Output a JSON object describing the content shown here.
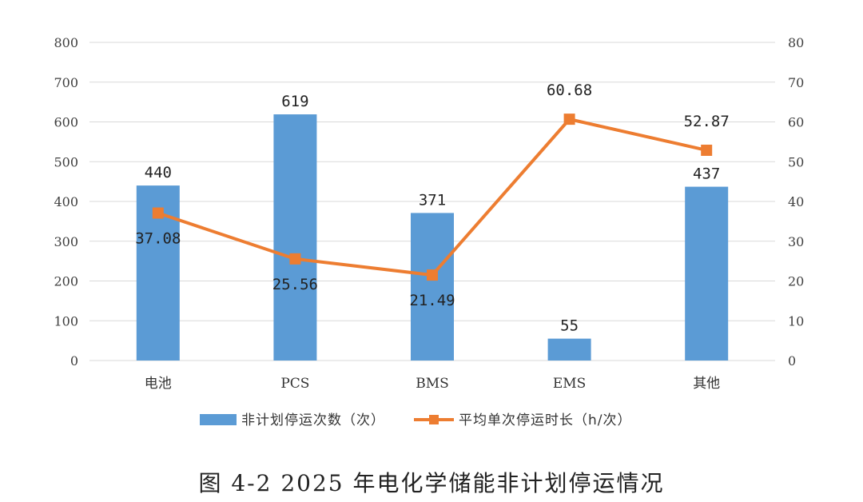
{
  "caption": "图 4-2 2025 年电化学储能非计划停运情况",
  "colors": {
    "bars": "#5b9bd5",
    "line": "#ed7d31",
    "grid": "#d9d9d9"
  },
  "chart_data": {
    "type": "bar",
    "categories": [
      "电池",
      "PCS",
      "BMS",
      "EMS",
      "其他"
    ],
    "series": [
      {
        "name": "非计划停运次数（次）",
        "type": "bar",
        "axis": "left",
        "values": [
          440,
          619,
          371,
          55,
          437
        ],
        "labels": [
          "440",
          "619",
          "371",
          "55",
          "437"
        ]
      },
      {
        "name": "平均单次停运时长（h/次）",
        "type": "line",
        "axis": "right",
        "values": [
          37.08,
          25.56,
          21.49,
          60.68,
          52.87
        ],
        "labels": [
          "37.08",
          "25.56",
          "21.49",
          "60.68",
          "52.87"
        ]
      }
    ],
    "y_left": {
      "ylim": [
        0,
        800
      ],
      "ticks": [
        "0",
        "100",
        "200",
        "300",
        "400",
        "500",
        "600",
        "700",
        "800"
      ]
    },
    "y_right": {
      "ylim": [
        0,
        80
      ],
      "ticks": [
        "0",
        "10",
        "20",
        "30",
        "40",
        "50",
        "60",
        "70",
        "80"
      ]
    },
    "grid": true,
    "legend": "bottom"
  }
}
